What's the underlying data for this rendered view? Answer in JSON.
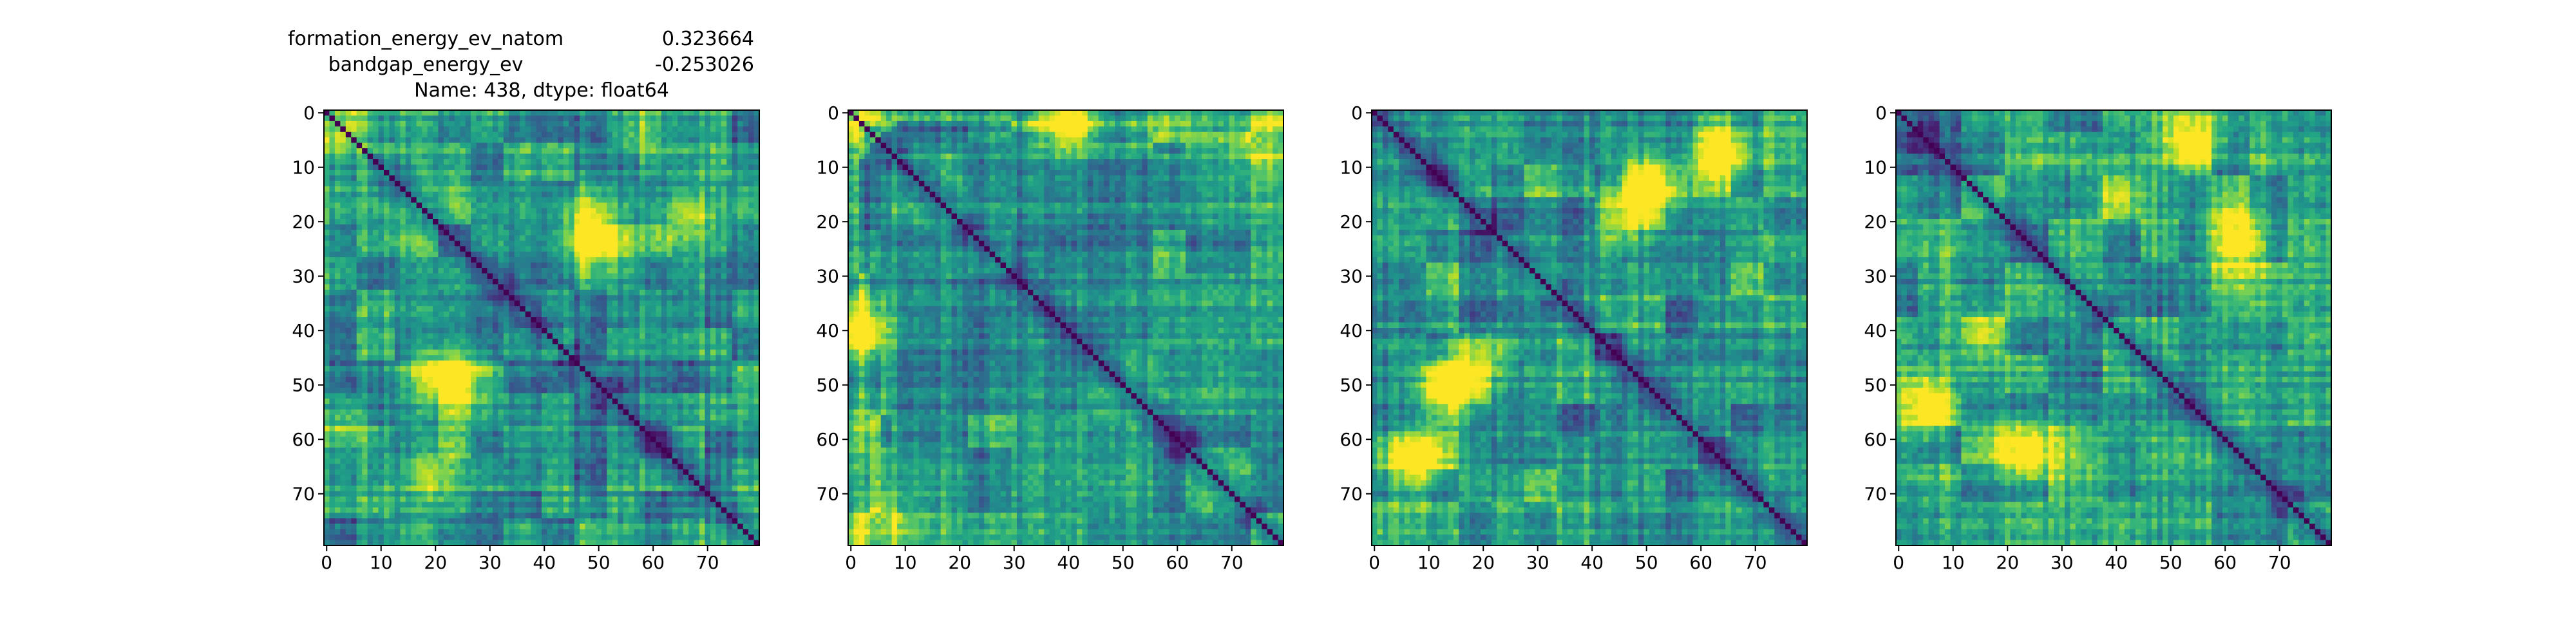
{
  "figure": {
    "title_lines": [
      {
        "label": "formation_energy_ev_natom",
        "value": "0.323664"
      },
      {
        "label": "bandgap_energy_ev",
        "value": "-0.253026"
      },
      {
        "label": "Name: 438, dtype: float64",
        "value": ""
      }
    ]
  },
  "chart_data": [
    {
      "type": "heatmap",
      "title": "formation_energy_ev_natom    0.323664 / bandgap_energy_ev    -0.253026 / Name: 438, dtype: float64",
      "size": 80,
      "xlim": [
        0,
        79
      ],
      "ylim": [
        79,
        0
      ],
      "xticks": [
        0,
        10,
        20,
        30,
        40,
        50,
        60,
        70
      ],
      "yticks": [
        0,
        10,
        20,
        30,
        40,
        50,
        60,
        70
      ],
      "colormap": "viridis",
      "diagonal_value": 0,
      "block_boundaries": [
        6,
        13,
        21,
        27,
        33,
        40,
        46,
        52,
        58,
        64,
        70,
        75
      ],
      "bright_regions": [
        [
          3,
          5
        ],
        [
          20,
          66
        ],
        [
          58,
          4
        ],
        [
          48,
          20
        ],
        [
          25,
          48
        ]
      ]
    },
    {
      "type": "heatmap",
      "title": "",
      "size": 80,
      "xlim": [
        0,
        79
      ],
      "ylim": [
        79,
        0
      ],
      "xticks": [
        0,
        10,
        20,
        30,
        40,
        50,
        60,
        70
      ],
      "yticks": [
        0,
        10,
        20,
        30,
        40,
        50,
        60,
        70
      ],
      "colormap": "viridis",
      "diagonal_value": 0,
      "block_boundaries": [
        2,
        4,
        6,
        8,
        22,
        30,
        44,
        56,
        62,
        74
      ],
      "bright_regions": [
        [
          1,
          1
        ],
        [
          2,
          40
        ],
        [
          6,
          76
        ],
        [
          40,
          2
        ],
        [
          58,
          2
        ]
      ]
    },
    {
      "type": "heatmap",
      "title": "",
      "size": 80,
      "xlim": [
        0,
        79
      ],
      "ylim": [
        79,
        0
      ],
      "xticks": [
        0,
        10,
        20,
        30,
        40,
        50,
        60,
        70
      ],
      "yticks": [
        0,
        10,
        20,
        30,
        40,
        50,
        60,
        70
      ],
      "colormap": "viridis",
      "diagonal_value": 0,
      "block_boundaries": [
        10,
        16,
        22,
        28,
        34,
        41,
        46,
        54,
        60,
        66,
        72
      ],
      "bright_regions": [
        [
          8,
          64
        ],
        [
          14,
          50
        ],
        [
          50,
          14
        ],
        [
          64,
          8
        ],
        [
          20,
          46
        ]
      ]
    },
    {
      "type": "heatmap",
      "title": "",
      "size": 80,
      "xlim": [
        0,
        79
      ],
      "ylim": [
        79,
        0
      ],
      "xticks": [
        0,
        10,
        20,
        30,
        40,
        50,
        60,
        70
      ],
      "yticks": [
        0,
        10,
        20,
        30,
        40,
        50,
        60,
        70
      ],
      "colormap": "viridis",
      "diagonal_value": 0,
      "block_boundaries": [
        4,
        12,
        20,
        28,
        38,
        45,
        52,
        58,
        65,
        72
      ],
      "bright_regions": [
        [
          4,
          56
        ],
        [
          16,
          40
        ],
        [
          62,
          22
        ],
        [
          52,
          4
        ],
        [
          24,
          62
        ]
      ]
    }
  ]
}
